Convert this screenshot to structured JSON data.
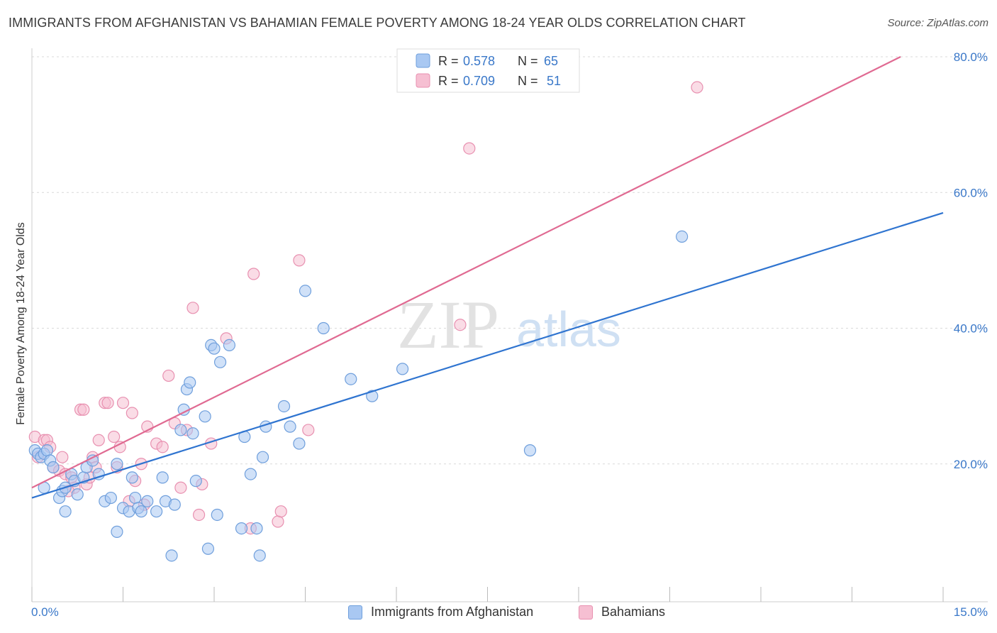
{
  "title": "IMMIGRANTS FROM AFGHANISTAN VS BAHAMIAN FEMALE POVERTY AMONG 18-24 YEAR OLDS CORRELATION CHART",
  "source": "Source: ZipAtlas.com",
  "watermark": {
    "zip": "ZIP",
    "atlas": "atlas"
  },
  "colors": {
    "blue_fill": "#a9c8f2",
    "blue_stroke": "#6f9fdc",
    "blue_line": "#2f74d0",
    "pink_fill": "#f6bfd2",
    "pink_stroke": "#e890b0",
    "pink_line": "#e06a92",
    "axis_text": "#3a78c9",
    "grid": "#d9d9d9"
  },
  "legend_top": {
    "rows": [
      {
        "r_label": "R =",
        "r_value": "0.578",
        "n_label": "N =",
        "n_value": "65"
      },
      {
        "r_label": "R =",
        "r_value": "0.709",
        "n_label": "N =",
        "n_value": "51"
      }
    ]
  },
  "chart_data": {
    "type": "scatter",
    "xlabel": "",
    "ylabel": "Female Poverty Among 18-24 Year Olds",
    "xlim": [
      0,
      15
    ],
    "ylim": [
      0,
      80
    ],
    "x_tick_labels": {
      "min": "0.0%",
      "max": "15.0%"
    },
    "y_ticks": [
      20,
      40,
      60,
      80
    ],
    "y_tick_labels": [
      "20.0%",
      "40.0%",
      "60.0%",
      "80.0%"
    ],
    "grid": true,
    "legend_position": "top-center",
    "series": [
      {
        "name": "Immigrants from Afghanistan",
        "color": "#a9c8f2",
        "trend": {
          "x0": 0.0,
          "y0": 15.0,
          "x1": 15.0,
          "y1": 57.0
        },
        "points": [
          [
            0.05,
            22.0
          ],
          [
            0.1,
            21.5
          ],
          [
            0.15,
            21.0
          ],
          [
            0.2,
            21.5
          ],
          [
            0.25,
            22.0
          ],
          [
            0.3,
            20.5
          ],
          [
            0.35,
            19.5
          ],
          [
            0.2,
            16.5
          ],
          [
            0.45,
            15.0
          ],
          [
            0.5,
            16.0
          ],
          [
            0.55,
            16.5
          ],
          [
            0.65,
            18.5
          ],
          [
            0.7,
            17.5
          ],
          [
            0.75,
            15.5
          ],
          [
            0.85,
            18.0
          ],
          [
            0.9,
            19.5
          ],
          [
            1.0,
            20.5
          ],
          [
            1.1,
            18.5
          ],
          [
            1.2,
            14.5
          ],
          [
            1.3,
            15.0
          ],
          [
            1.4,
            20.0
          ],
          [
            1.5,
            13.5
          ],
          [
            1.6,
            13.0
          ],
          [
            1.7,
            15.0
          ],
          [
            1.75,
            13.5
          ],
          [
            1.8,
            13.0
          ],
          [
            0.55,
            13.0
          ],
          [
            1.4,
            10.0
          ],
          [
            1.65,
            18.0
          ],
          [
            1.9,
            14.5
          ],
          [
            2.05,
            13.0
          ],
          [
            2.2,
            14.5
          ],
          [
            2.3,
            6.5
          ],
          [
            2.15,
            18.0
          ],
          [
            2.35,
            14.0
          ],
          [
            2.45,
            25.0
          ],
          [
            2.5,
            28.0
          ],
          [
            2.55,
            31.0
          ],
          [
            2.6,
            32.0
          ],
          [
            2.65,
            24.5
          ],
          [
            2.7,
            17.5
          ],
          [
            2.85,
            27.0
          ],
          [
            2.9,
            7.5
          ],
          [
            2.95,
            37.5
          ],
          [
            3.0,
            37.0
          ],
          [
            3.1,
            35.0
          ],
          [
            3.25,
            37.5
          ],
          [
            3.05,
            12.5
          ],
          [
            3.45,
            10.5
          ],
          [
            3.5,
            24.0
          ],
          [
            3.6,
            18.5
          ],
          [
            3.7,
            10.5
          ],
          [
            3.75,
            6.5
          ],
          [
            3.8,
            21.0
          ],
          [
            3.85,
            25.5
          ],
          [
            4.15,
            28.5
          ],
          [
            4.25,
            25.5
          ],
          [
            4.4,
            23.0
          ],
          [
            4.5,
            45.5
          ],
          [
            4.8,
            40.0
          ],
          [
            5.25,
            32.5
          ],
          [
            5.6,
            30.0
          ],
          [
            6.1,
            34.0
          ],
          [
            8.2,
            22.0
          ],
          [
            10.7,
            53.5
          ]
        ]
      },
      {
        "name": "Bahamians",
        "color": "#f6bfd2",
        "trend": {
          "x0": 0.0,
          "y0": 16.5,
          "x1": 14.3,
          "y1": 80.0
        },
        "points": [
          [
            0.05,
            24.0
          ],
          [
            0.1,
            21.0
          ],
          [
            0.2,
            23.5
          ],
          [
            0.25,
            23.5
          ],
          [
            0.3,
            22.5
          ],
          [
            0.35,
            19.5
          ],
          [
            0.45,
            19.0
          ],
          [
            0.5,
            21.0
          ],
          [
            0.55,
            18.5
          ],
          [
            0.65,
            18.0
          ],
          [
            0.7,
            16.5
          ],
          [
            0.8,
            28.0
          ],
          [
            0.85,
            28.0
          ],
          [
            0.9,
            17.0
          ],
          [
            1.0,
            21.0
          ],
          [
            1.05,
            19.5
          ],
          [
            1.1,
            23.5
          ],
          [
            1.2,
            29.0
          ],
          [
            1.25,
            29.0
          ],
          [
            1.35,
            24.0
          ],
          [
            1.4,
            19.5
          ],
          [
            1.45,
            22.5
          ],
          [
            1.5,
            29.0
          ],
          [
            1.6,
            14.5
          ],
          [
            1.65,
            27.5
          ],
          [
            1.7,
            17.5
          ],
          [
            1.8,
            20.0
          ],
          [
            1.9,
            25.5
          ],
          [
            2.05,
            23.0
          ],
          [
            2.15,
            22.5
          ],
          [
            2.25,
            33.0
          ],
          [
            2.35,
            26.0
          ],
          [
            2.45,
            16.5
          ],
          [
            2.55,
            25.0
          ],
          [
            2.65,
            43.0
          ],
          [
            2.75,
            12.5
          ],
          [
            2.8,
            17.0
          ],
          [
            2.95,
            23.0
          ],
          [
            3.2,
            38.5
          ],
          [
            3.6,
            10.5
          ],
          [
            3.65,
            48.0
          ],
          [
            4.05,
            11.5
          ],
          [
            4.1,
            13.0
          ],
          [
            4.4,
            50.0
          ],
          [
            4.55,
            25.0
          ],
          [
            7.05,
            40.5
          ],
          [
            7.2,
            66.5
          ],
          [
            10.95,
            75.5
          ],
          [
            1.85,
            14.0
          ],
          [
            0.6,
            16.0
          ],
          [
            0.95,
            18.0
          ]
        ]
      }
    ]
  }
}
